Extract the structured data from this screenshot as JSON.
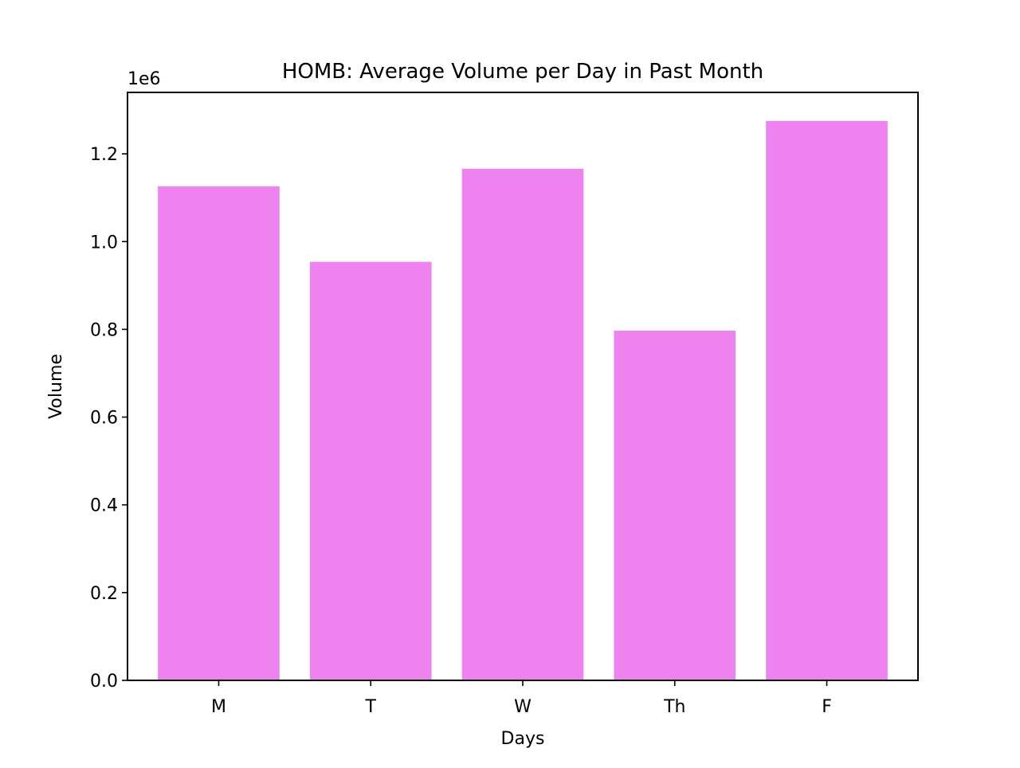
{
  "chart_data": {
    "type": "bar",
    "title": "HOMB: Average Volume per Day in Past Month",
    "xlabel": "Days",
    "ylabel": "Volume",
    "categories": [
      "M",
      "T",
      "W",
      "Th",
      "F"
    ],
    "values": [
      1126000,
      954000,
      1166000,
      797000,
      1275000
    ],
    "ylim": [
      0,
      1340000
    ],
    "yticks": [
      0,
      200000,
      400000,
      600000,
      800000,
      1000000,
      1200000
    ],
    "ytick_labels": [
      "0.0",
      "0.2",
      "0.4",
      "0.6",
      "0.8",
      "1.0",
      "1.2"
    ],
    "offset_label": "1e6",
    "bar_color": "#ee82ee",
    "grid": false,
    "legend": "none"
  }
}
